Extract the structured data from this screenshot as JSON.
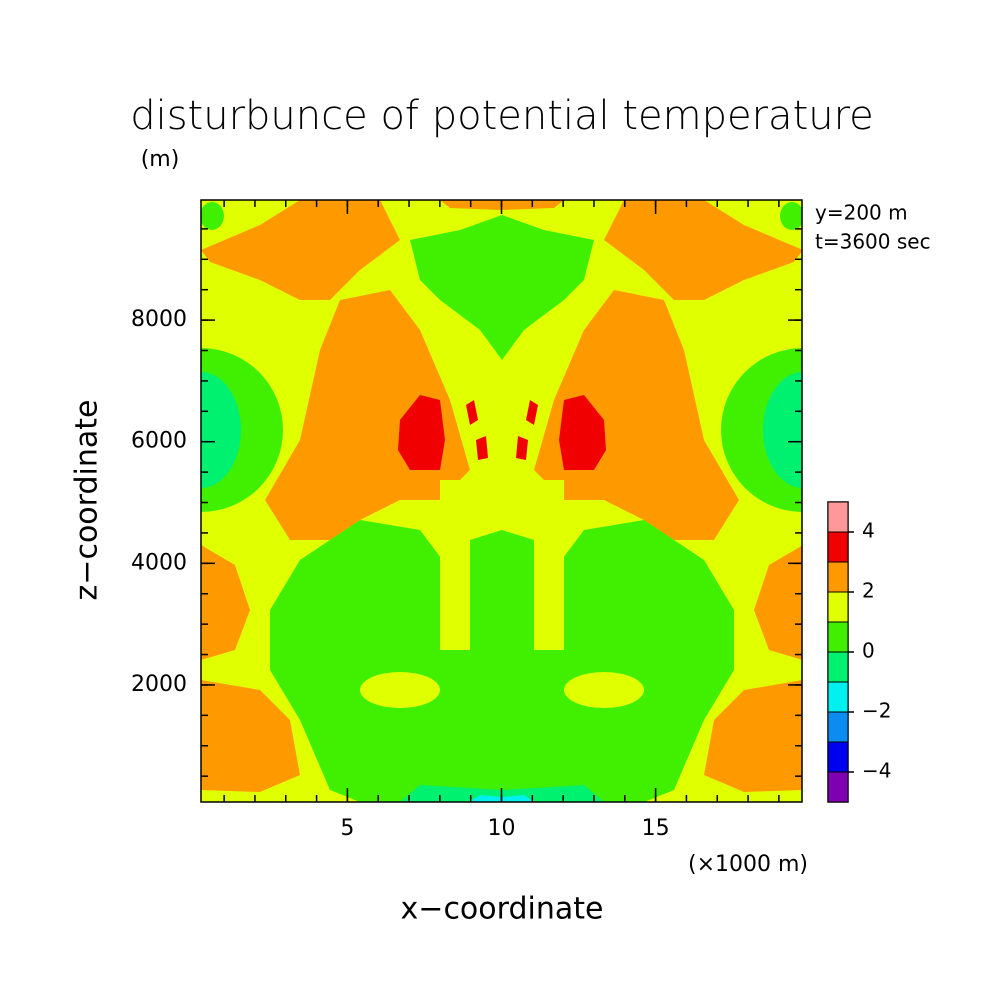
{
  "chart_data": {
    "type": "contour",
    "title": "disturbunce of potential temperature",
    "y_unit": "(m)",
    "x_label": "x−coordinate",
    "y_label": "z−coordinate",
    "x_unit": "(×1000 m)",
    "annotations": [
      "y=200 m",
      "t=3600 sec"
    ],
    "xlim": [
      0.25,
      19.75
    ],
    "ylim": [
      75,
      9975
    ],
    "xticks": [
      5,
      10,
      15
    ],
    "yticks": [
      2000,
      4000,
      6000,
      8000
    ],
    "xminorticks": [
      1,
      2,
      3,
      4,
      5,
      6,
      7,
      8,
      9,
      10,
      11,
      12,
      13,
      14,
      15,
      16,
      17,
      18,
      19
    ],
    "yminorticks": [
      500,
      1000,
      1500,
      2000,
      2500,
      3000,
      3500,
      4000,
      4500,
      5000,
      5500,
      6000,
      6500,
      7000,
      7500,
      8000,
      8500,
      9000,
      9500
    ],
    "colorbar": {
      "levels": [
        -5,
        -4,
        -3,
        -2,
        -1,
        0,
        1,
        2,
        3,
        4,
        5
      ],
      "colors": [
        "#7f00b0",
        "#0000f0",
        "#0a8cf0",
        "#00f0f0",
        "#00f070",
        "#40f000",
        "#e0ff00",
        "#ff9900",
        "#f00000",
        "#ff9999"
      ],
      "ticks": [
        {
          "value": -4,
          "label": "−4"
        },
        {
          "value": -2,
          "label": "−2"
        },
        0,
        2,
        4
      ]
    }
  }
}
